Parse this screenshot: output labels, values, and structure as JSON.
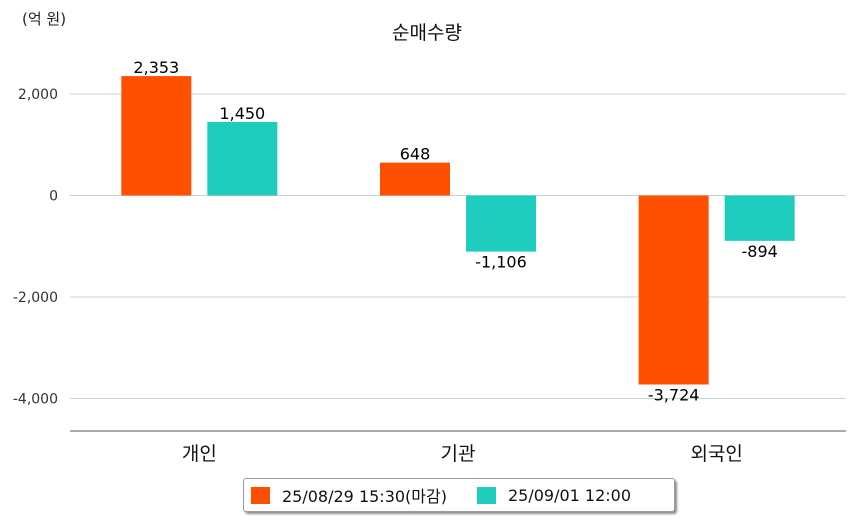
{
  "chart_data": {
    "type": "bar",
    "title": "순매수량",
    "unit_label": "(억 원)",
    "categories": [
      "개인",
      "기관",
      "외국인"
    ],
    "series": [
      {
        "name": "25/08/29 15:30(마감)",
        "color": "#ff5000",
        "values": [
          2353,
          648,
          -3724
        ],
        "labels": [
          "2,353",
          "648",
          "-3,724"
        ]
      },
      {
        "name": "25/09/01 12:00",
        "color": "#1ecdbd",
        "values": [
          1450,
          -1106,
          -894
        ],
        "labels": [
          "1,450",
          "-1,106",
          "-894"
        ]
      }
    ],
    "yticks": [
      2000,
      0,
      -2000,
      -4000
    ],
    "ytick_labels": [
      "2,000",
      "0",
      "-2,000",
      "-4,000"
    ],
    "ylim": [
      -4650,
      2900
    ],
    "grid": true,
    "legend_position": "bottom"
  }
}
